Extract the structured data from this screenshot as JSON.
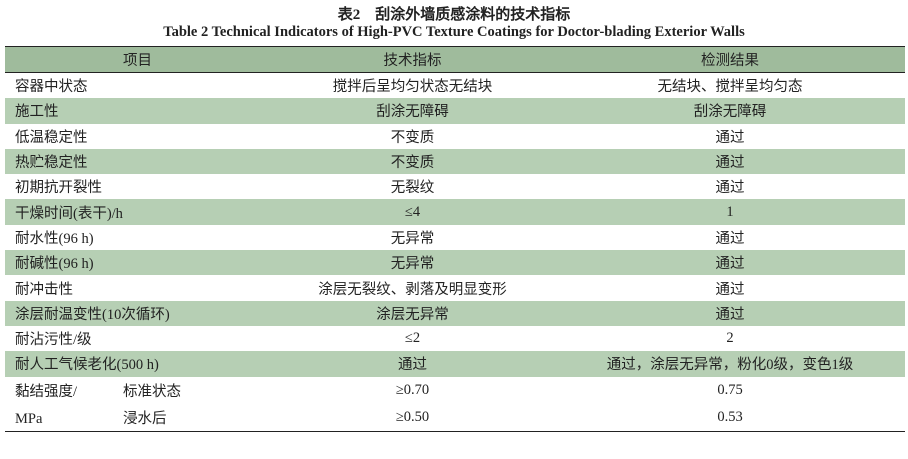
{
  "caption_cn": "表2　刮涂外墙质感涂料的技术指标",
  "caption_en": "Table 2  Technical Indicators of High-PVC Texture Coatings for Doctor-blading Exterior Walls",
  "headers": [
    "项目",
    "技术指标",
    "检测结果"
  ],
  "rows": [
    [
      "容器中状态",
      "搅拌后呈均匀状态无结块",
      "无结块、搅拌呈均匀态"
    ],
    [
      "施工性",
      "刮涂无障碍",
      "刮涂无障碍"
    ],
    [
      "低温稳定性",
      "不变质",
      "通过"
    ],
    [
      "热贮稳定性",
      "不变质",
      "通过"
    ],
    [
      "初期抗开裂性",
      "无裂纹",
      "通过"
    ],
    [
      "干燥时间(表干)/h",
      "≤4",
      "1"
    ],
    [
      "耐水性(96 h)",
      "无异常",
      "通过"
    ],
    [
      "耐碱性(96 h)",
      "无异常",
      "通过"
    ],
    [
      "耐冲击性",
      "涂层无裂纹、剥落及明显变形",
      "通过"
    ],
    [
      "涂层耐温变性(10次循环)",
      "涂层无异常",
      "通过"
    ],
    [
      "耐沾污性/级",
      "≤2",
      "2"
    ],
    [
      "耐人工气候老化(500 h)",
      "通过",
      "通过，涂层无异常，粉化0级，变色1级"
    ]
  ],
  "bond": {
    "label_line1": "黏结强度/",
    "label_line2": "MPa",
    "rows": [
      [
        "标准状态",
        "≥0.70",
        "0.75"
      ],
      [
        "浸水后",
        "≥0.50",
        "0.53"
      ]
    ]
  },
  "colors": {
    "header_bg": "#9fbb9c",
    "stripe_bg": "#b6cfb4"
  }
}
